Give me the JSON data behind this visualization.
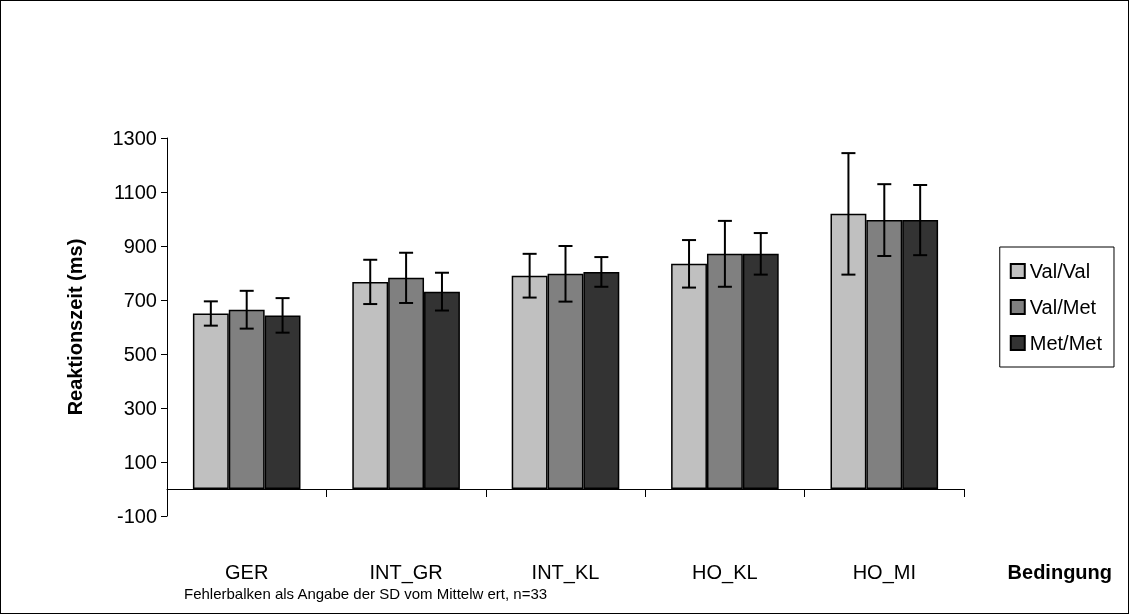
{
  "chart_data": {
    "type": "bar",
    "xlabel": "Bedingung",
    "ylabel": "Reaktionszeit (ms)",
    "categories": [
      "GER",
      "INT_GR",
      "INT_KL",
      "HO_KL",
      "HO_MI"
    ],
    "series": [
      {
        "name": "Val/Val",
        "color": "#c0c0c0",
        "values": [
          650,
          767,
          790,
          834,
          1019
        ],
        "errors": [
          45,
          82,
          81,
          88,
          225
        ]
      },
      {
        "name": "Val/Met",
        "color": "#808080",
        "values": [
          664,
          782,
          797,
          871,
          996
        ],
        "errors": [
          70,
          93,
          103,
          122,
          133
        ]
      },
      {
        "name": "Met/Met",
        "color": "#333333",
        "values": [
          643,
          731,
          804,
          871,
          996
        ],
        "errors": [
          64,
          70,
          55,
          77,
          130
        ]
      }
    ],
    "ylim": [
      -100,
      1300
    ],
    "yticks": [
      -100,
      100,
      300,
      500,
      700,
      900,
      1100,
      1300
    ],
    "grid": false,
    "legend": "right",
    "annotations": [
      "Fehlerbalken als Angabe der SD vom Mittelw ert, n=33"
    ]
  }
}
